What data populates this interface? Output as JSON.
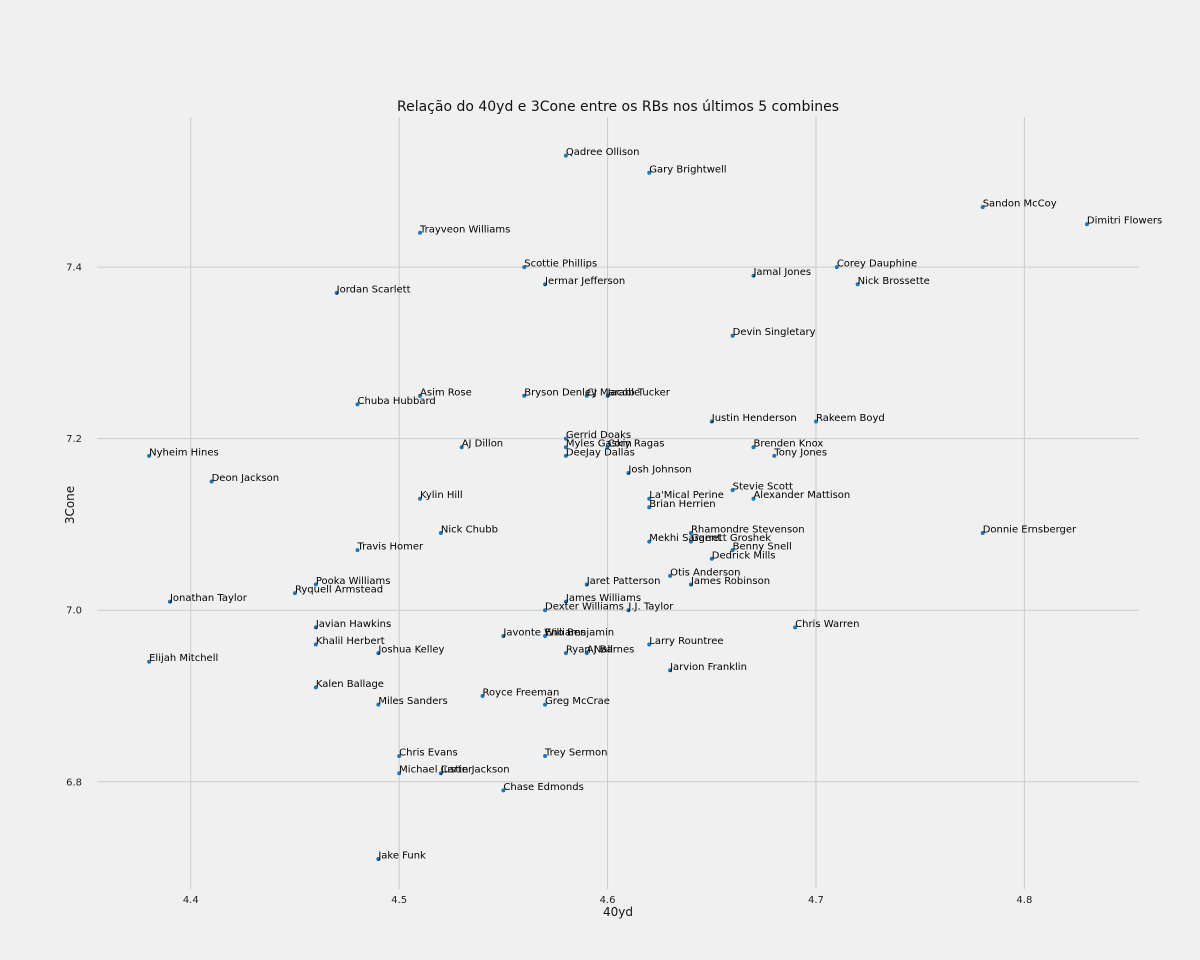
{
  "chart_data": {
    "type": "scatter",
    "title": "Relação do 40yd e 3Cone entre os RBs nos últimos 5 combines",
    "xlabel": "40yd",
    "ylabel": "3Cone",
    "xlim": [
      4.355,
      4.855
    ],
    "ylim": [
      6.675,
      7.575
    ],
    "xticks": [
      "4.4",
      "4.5",
      "4.6",
      "4.7",
      "4.8"
    ],
    "yticks": [
      "6.8",
      "7.0",
      "7.2",
      "7.4"
    ],
    "grid": true,
    "point_color": "#1f77b4",
    "points": [
      {
        "name": "Qadree Ollison",
        "x": 4.58,
        "y": 7.53
      },
      {
        "name": "Gary Brightwell",
        "x": 4.62,
        "y": 7.51
      },
      {
        "name": "Sandon McCoy",
        "x": 4.78,
        "y": 7.47
      },
      {
        "name": "Dimitri Flowers",
        "x": 4.83,
        "y": 7.45
      },
      {
        "name": "Trayveon Williams",
        "x": 4.51,
        "y": 7.44
      },
      {
        "name": "Scottie Phillips",
        "x": 4.56,
        "y": 7.4
      },
      {
        "name": "Corey Dauphine",
        "x": 4.71,
        "y": 7.4
      },
      {
        "name": "Jamal Jones",
        "x": 4.67,
        "y": 7.39
      },
      {
        "name": "Jermar Jefferson",
        "x": 4.57,
        "y": 7.38
      },
      {
        "name": "Nick Brossette",
        "x": 4.72,
        "y": 7.38
      },
      {
        "name": "Jordan Scarlett",
        "x": 4.47,
        "y": 7.37
      },
      {
        "name": "Devin Singletary",
        "x": 4.66,
        "y": 7.32
      },
      {
        "name": "Asim Rose",
        "x": 4.51,
        "y": 7.25
      },
      {
        "name": "Bryson Denley",
        "x": 4.56,
        "y": 7.25
      },
      {
        "name": "CJ Marable",
        "x": 4.59,
        "y": 7.25
      },
      {
        "name": "Jacob Tucker",
        "x": 4.6,
        "y": 7.25
      },
      {
        "name": "Chuba Hubbard",
        "x": 4.48,
        "y": 7.24
      },
      {
        "name": "Justin Henderson",
        "x": 4.65,
        "y": 7.22
      },
      {
        "name": "Rakeem Boyd",
        "x": 4.7,
        "y": 7.22
      },
      {
        "name": "Gerrid Doaks",
        "x": 4.58,
        "y": 7.2
      },
      {
        "name": "AJ Dillon",
        "x": 4.53,
        "y": 7.19
      },
      {
        "name": "Myles Gaskin",
        "x": 4.58,
        "y": 7.19
      },
      {
        "name": "Cory Ragas",
        "x": 4.6,
        "y": 7.19
      },
      {
        "name": "Brenden Knox",
        "x": 4.67,
        "y": 7.19
      },
      {
        "name": "Nyheim Hines",
        "x": 4.38,
        "y": 7.18
      },
      {
        "name": "DeeJay Dallas",
        "x": 4.58,
        "y": 7.18
      },
      {
        "name": "Tony Jones",
        "x": 4.68,
        "y": 7.18
      },
      {
        "name": "Josh Johnson",
        "x": 4.61,
        "y": 7.16
      },
      {
        "name": "Deon Jackson",
        "x": 4.41,
        "y": 7.15
      },
      {
        "name": "Stevie Scott",
        "x": 4.66,
        "y": 7.14
      },
      {
        "name": "Kylin Hill",
        "x": 4.51,
        "y": 7.13
      },
      {
        "name": "La'Mical Perine",
        "x": 4.62,
        "y": 7.13
      },
      {
        "name": "Alexander Mattison",
        "x": 4.67,
        "y": 7.13
      },
      {
        "name": "Brian Herrien",
        "x": 4.62,
        "y": 7.12
      },
      {
        "name": "Nick Chubb",
        "x": 4.52,
        "y": 7.09
      },
      {
        "name": "Rhamondre Stevenson",
        "x": 4.64,
        "y": 7.09
      },
      {
        "name": "Donnie Ernsberger",
        "x": 4.78,
        "y": 7.09
      },
      {
        "name": "Mekhi Sargent",
        "x": 4.62,
        "y": 7.08
      },
      {
        "name": "Garrett Groshek",
        "x": 4.64,
        "y": 7.08
      },
      {
        "name": "Travis Homer",
        "x": 4.48,
        "y": 7.07
      },
      {
        "name": "Benny Snell",
        "x": 4.66,
        "y": 7.07
      },
      {
        "name": "Dedrick Mills",
        "x": 4.65,
        "y": 7.06
      },
      {
        "name": "Otis Anderson",
        "x": 4.63,
        "y": 7.04
      },
      {
        "name": "Pooka Williams",
        "x": 4.46,
        "y": 7.03
      },
      {
        "name": "Jaret Patterson",
        "x": 4.59,
        "y": 7.03
      },
      {
        "name": "James Robinson",
        "x": 4.64,
        "y": 7.03
      },
      {
        "name": "Ryquell Armstead",
        "x": 4.45,
        "y": 7.02
      },
      {
        "name": "Jonathan Taylor",
        "x": 4.39,
        "y": 7.01
      },
      {
        "name": "James Williams",
        "x": 4.58,
        "y": 7.01
      },
      {
        "name": "Dexter Williams",
        "x": 4.57,
        "y": 7.0
      },
      {
        "name": "J.J. Taylor",
        "x": 4.61,
        "y": 7.0
      },
      {
        "name": "Javian Hawkins",
        "x": 4.46,
        "y": 6.98
      },
      {
        "name": "Chris Warren",
        "x": 4.69,
        "y": 6.98
      },
      {
        "name": "Javonte Williams",
        "x": 4.55,
        "y": 6.97
      },
      {
        "name": "Eno Benjamin",
        "x": 4.57,
        "y": 6.97
      },
      {
        "name": "Khalil Herbert",
        "x": 4.46,
        "y": 6.96
      },
      {
        "name": "Larry Rountree",
        "x": 4.62,
        "y": 6.96
      },
      {
        "name": "Joshua Kelley",
        "x": 4.49,
        "y": 6.95
      },
      {
        "name": "Ryan Nall",
        "x": 4.58,
        "y": 6.95
      },
      {
        "name": "AJ Barnes",
        "x": 4.59,
        "y": 6.95
      },
      {
        "name": "Elijah Mitchell",
        "x": 4.38,
        "y": 6.94
      },
      {
        "name": "Jarvion Franklin",
        "x": 4.63,
        "y": 6.93
      },
      {
        "name": "Kalen Ballage",
        "x": 4.46,
        "y": 6.91
      },
      {
        "name": "Royce Freeman",
        "x": 4.54,
        "y": 6.9
      },
      {
        "name": "Miles Sanders",
        "x": 4.49,
        "y": 6.89
      },
      {
        "name": "Greg McCrae",
        "x": 4.57,
        "y": 6.89
      },
      {
        "name": "Chris Evans",
        "x": 4.5,
        "y": 6.83
      },
      {
        "name": "Trey Sermon",
        "x": 4.57,
        "y": 6.83
      },
      {
        "name": "Michael Carter",
        "x": 4.5,
        "y": 6.81
      },
      {
        "name": "Justin Jackson",
        "x": 4.52,
        "y": 6.81
      },
      {
        "name": "Chase Edmonds",
        "x": 4.55,
        "y": 6.79
      },
      {
        "name": "Jake Funk",
        "x": 4.49,
        "y": 6.71
      }
    ]
  }
}
